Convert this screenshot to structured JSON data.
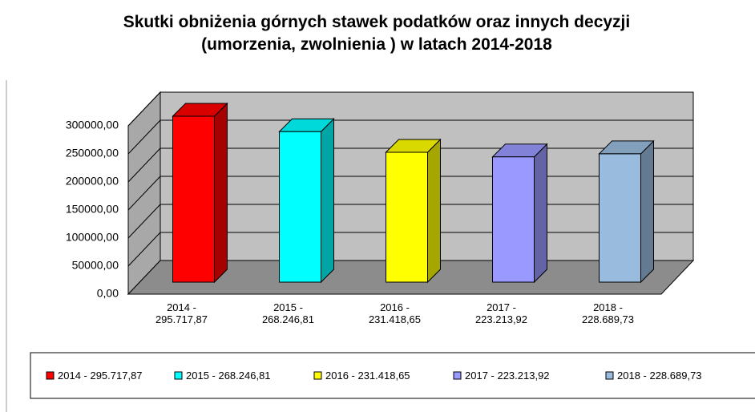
{
  "chart_data": {
    "type": "bar3d",
    "title": "Skutki obniżenia górnych stawek podatków oraz innych decyzji (umorzenia, zwolnienia ) w latach 2014-2018",
    "categories": [
      "2014 - 295.717,87",
      "2015 - 268.246,81",
      "2016 - 231.418,65",
      "2017 - 223.213,92",
      "2018 - 228.689,73"
    ],
    "values": [
      295717.87,
      268246.81,
      231418.65,
      223213.92,
      228689.73
    ],
    "colors": [
      "#ff0000",
      "#00ffff",
      "#ffff00",
      "#9999ff",
      "#99bbdd"
    ],
    "ylim": [
      0,
      300000
    ],
    "yticks": [
      {
        "value": 0,
        "label": "0,00"
      },
      {
        "value": 50000,
        "label": "50000,00"
      },
      {
        "value": 100000,
        "label": "100000,00"
      },
      {
        "value": 150000,
        "label": "150000,00"
      },
      {
        "value": 200000,
        "label": "200000,00"
      },
      {
        "value": 250000,
        "label": "250000,00"
      },
      {
        "value": 300000,
        "label": "300000,00"
      }
    ],
    "grid": true,
    "legend": "bottom"
  }
}
